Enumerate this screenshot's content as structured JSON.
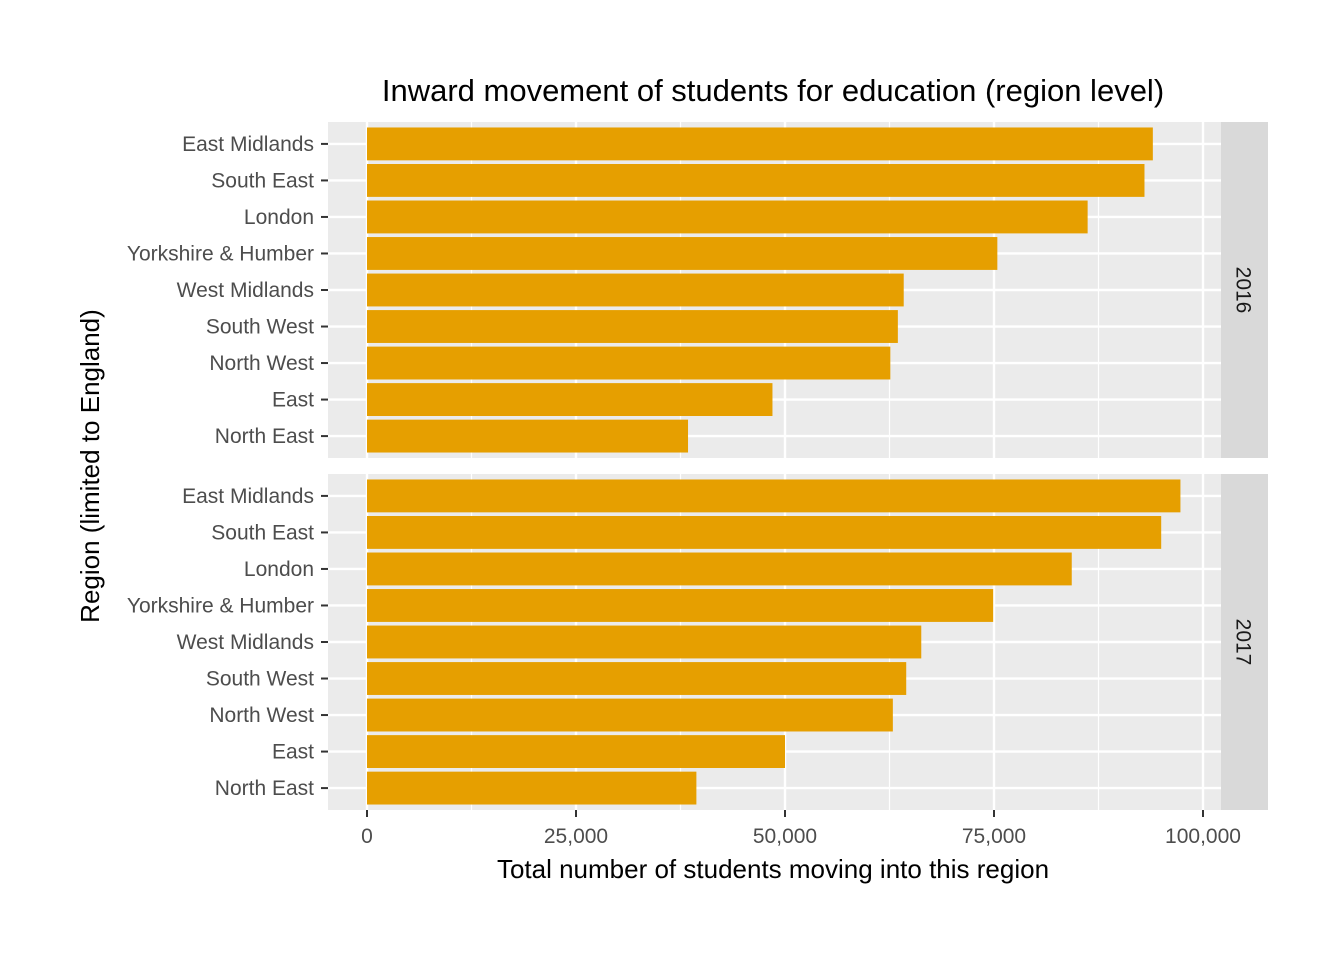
{
  "chart_data": {
    "type": "bar",
    "orientation": "horizontal",
    "title": "Inward movement of students for education (region level)",
    "xlabel": "Total number of students moving into this region",
    "ylabel": "Region (limited to England)",
    "xlim": [
      0,
      100000
    ],
    "x_ticks": [
      0,
      25000,
      50000,
      75000,
      100000
    ],
    "x_tick_labels": [
      "0",
      "25,000",
      "50,000",
      "75,000",
      "100,000"
    ],
    "grid": true,
    "legend": "none",
    "bar_color": "#E69F00",
    "panel_background": "#EBEBEB",
    "strip_background": "#D9D9D9",
    "categories": [
      "East Midlands",
      "South East",
      "London",
      "Yorkshire & Humber",
      "West Midlands",
      "South West",
      "North West",
      "East",
      "North East"
    ],
    "facets": [
      {
        "label": "2016",
        "values": [
          94000,
          93000,
          86200,
          75400,
          64200,
          63500,
          62600,
          48500,
          38400
        ]
      },
      {
        "label": "2017",
        "values": [
          97300,
          95000,
          84300,
          74900,
          66300,
          64500,
          62900,
          50000,
          39400
        ]
      }
    ]
  }
}
